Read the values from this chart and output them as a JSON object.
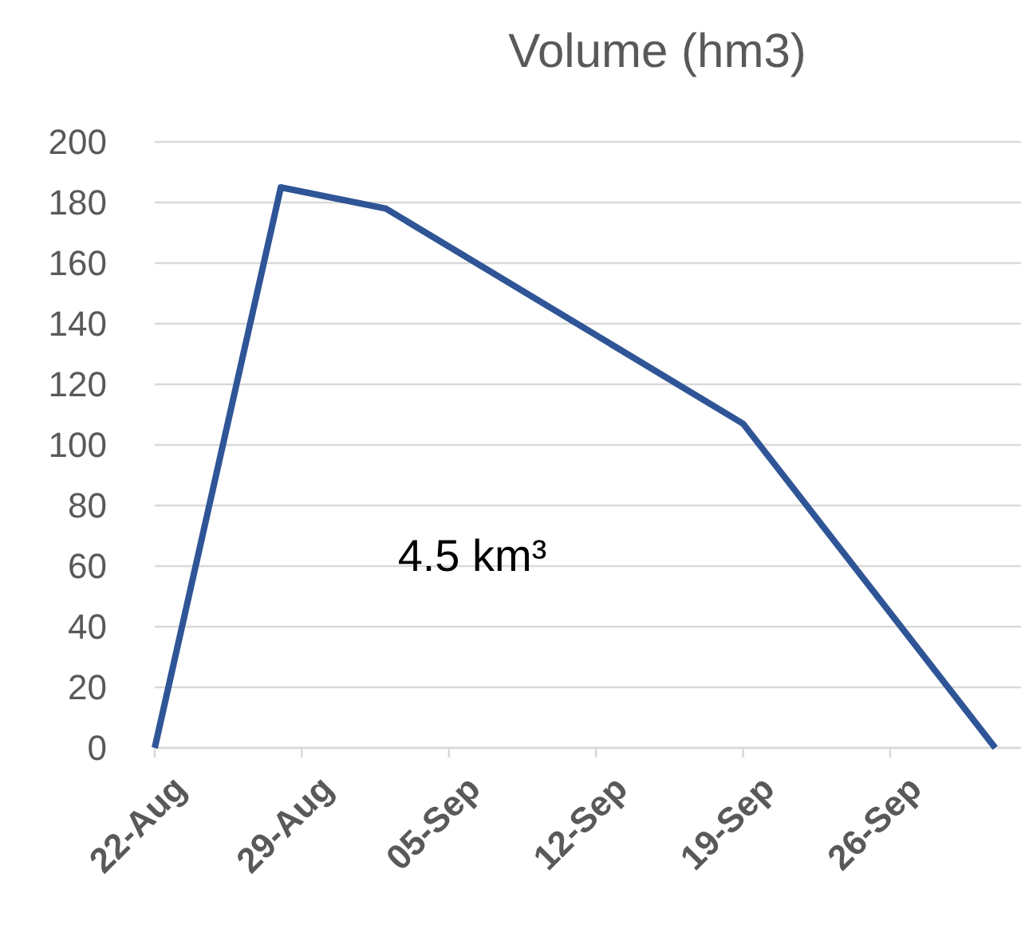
{
  "chart_data": {
    "type": "line",
    "title": "Volume (hm3)",
    "x": [
      "--08-22",
      "--08-28",
      "--09-02",
      "--09-19",
      "--10-01"
    ],
    "series": [
      {
        "color": "#2f5597",
        "values": [
          0,
          185,
          178,
          107,
          0
        ]
      }
    ],
    "xlim": [
      "--08-22",
      "--10-02"
    ],
    "xticks": [
      {
        "value": "--08-22",
        "label": "22-Aug"
      },
      {
        "value": "--08-29",
        "label": "29-Aug"
      },
      {
        "value": "--09-05",
        "label": "05-Sep"
      },
      {
        "value": "--09-12",
        "label": "12-Sep"
      },
      {
        "value": "--09-19",
        "label": "19-Sep"
      },
      {
        "value": "--09-26",
        "label": "26-Sep"
      }
    ],
    "ylim": [
      0,
      200
    ],
    "yticks": [
      0,
      20,
      40,
      60,
      80,
      100,
      120,
      140,
      160,
      180,
      200
    ],
    "grid": "y",
    "marker": "none",
    "line_style": "solid",
    "annotations": [
      "4.5 km³"
    ]
  }
}
